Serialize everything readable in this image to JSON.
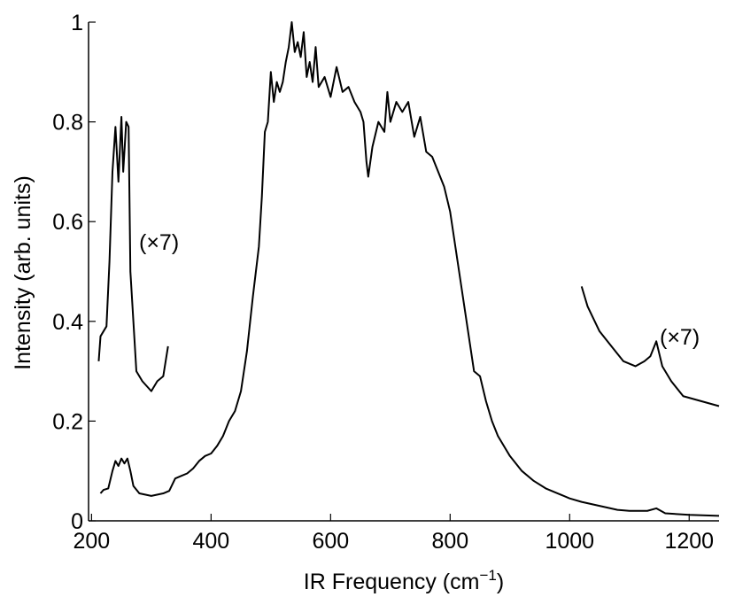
{
  "chart_data": {
    "type": "line",
    "xlabel": [
      "IR Frequency (cm",
      "−1",
      ")"
    ],
    "ylabel": "Intensity (arb. units)",
    "annotations": [
      "(×7)",
      "(×7)"
    ],
    "xlim": [
      195,
      1250
    ],
    "xticks": [
      200,
      400,
      600,
      800,
      1000,
      1200
    ],
    "ylim": [
      0,
      1
    ],
    "yticks": [
      0,
      0.2,
      0.4,
      0.6,
      0.8,
      1
    ],
    "grid": false,
    "series": [
      {
        "color": "#000000",
        "x": [
          215,
          220,
          228,
          235,
          240,
          245,
          250,
          255,
          260,
          265,
          270,
          280,
          300,
          320,
          330,
          340,
          350,
          360,
          370,
          380,
          390,
          400,
          410,
          420,
          430,
          440,
          450,
          460,
          470,
          480,
          485,
          490,
          495,
          500,
          505,
          510,
          515,
          520,
          525,
          530,
          535,
          540,
          545,
          550,
          555,
          560,
          565,
          570,
          575,
          580,
          590,
          600,
          610,
          620,
          630,
          640,
          650,
          655,
          660,
          663,
          670,
          680,
          690,
          695,
          700,
          710,
          720,
          730,
          740,
          750,
          760,
          770,
          780,
          790,
          800,
          810,
          820,
          830,
          840,
          850,
          860,
          870,
          880,
          900,
          920,
          940,
          960,
          980,
          1000,
          1020,
          1050,
          1080,
          1100,
          1130,
          1145,
          1160,
          1200,
          1250
        ],
        "values": [
          0.055,
          0.062,
          0.065,
          0.1,
          0.12,
          0.11,
          0.125,
          0.115,
          0.125,
          0.1,
          0.07,
          0.055,
          0.05,
          0.055,
          0.06,
          0.085,
          0.09,
          0.095,
          0.105,
          0.12,
          0.13,
          0.135,
          0.15,
          0.17,
          0.2,
          0.22,
          0.26,
          0.34,
          0.45,
          0.55,
          0.65,
          0.78,
          0.8,
          0.9,
          0.84,
          0.88,
          0.86,
          0.88,
          0.92,
          0.95,
          1.0,
          0.94,
          0.96,
          0.93,
          0.98,
          0.89,
          0.92,
          0.88,
          0.95,
          0.87,
          0.89,
          0.85,
          0.91,
          0.86,
          0.87,
          0.84,
          0.82,
          0.8,
          0.72,
          0.69,
          0.75,
          0.8,
          0.78,
          0.86,
          0.8,
          0.84,
          0.82,
          0.84,
          0.77,
          0.81,
          0.74,
          0.73,
          0.7,
          0.67,
          0.62,
          0.54,
          0.46,
          0.38,
          0.3,
          0.29,
          0.24,
          0.2,
          0.17,
          0.13,
          0.1,
          0.08,
          0.065,
          0.055,
          0.045,
          0.038,
          0.03,
          0.022,
          0.02,
          0.02,
          0.025,
          0.015,
          0.012,
          0.01
        ]
      },
      {
        "color": "#000000",
        "x": [
          212,
          215,
          220,
          225,
          230,
          235,
          240,
          245,
          250,
          253,
          258,
          262,
          265,
          270,
          275,
          285,
          300,
          310,
          320,
          328
        ],
        "values": [
          0.32,
          0.37,
          0.38,
          0.39,
          0.52,
          0.7,
          0.79,
          0.68,
          0.81,
          0.7,
          0.8,
          0.79,
          0.5,
          0.4,
          0.3,
          0.28,
          0.26,
          0.28,
          0.29,
          0.35
        ]
      },
      {
        "color": "#000000",
        "x": [
          1020,
          1030,
          1050,
          1070,
          1090,
          1110,
          1125,
          1135,
          1145,
          1155,
          1170,
          1190,
          1220,
          1250
        ],
        "values": [
          0.47,
          0.43,
          0.38,
          0.35,
          0.32,
          0.31,
          0.32,
          0.33,
          0.36,
          0.31,
          0.28,
          0.25,
          0.24,
          0.23
        ]
      }
    ]
  }
}
